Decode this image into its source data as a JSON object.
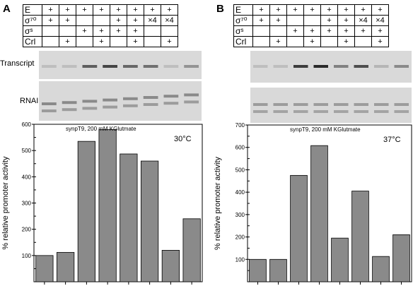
{
  "panels": [
    {
      "letter": "A",
      "conditions": {
        "row_labels": [
          "E",
          "σ⁷⁰",
          "σˢ",
          "Crl"
        ],
        "cells": [
          [
            "+",
            "+",
            "+",
            "+",
            "+",
            "+",
            "+",
            "+"
          ],
          [
            "+",
            "+",
            "",
            "",
            "+",
            "+",
            "×4",
            "×4"
          ],
          [
            "",
            "",
            "+",
            "+",
            "+",
            "+",
            "",
            ""
          ],
          [
            "",
            "+",
            "",
            "+",
            "",
            "+",
            "",
            "+"
          ]
        ]
      },
      "gel_labels": [
        "Transcript",
        "RNAI"
      ],
      "chart_data": {
        "type": "bar",
        "title": "synpT9, 200 mM KGlutmate",
        "annotation": "30°C",
        "ylabel": "% relative promoter activity",
        "ylim": [
          0,
          600
        ],
        "yticks": [
          "100",
          "200",
          "300",
          "400",
          "500",
          "600"
        ],
        "values": [
          100,
          112,
          535,
          580,
          487,
          460,
          120,
          240
        ]
      }
    },
    {
      "letter": "B",
      "conditions": {
        "row_labels": [
          "E",
          "σ⁷⁰",
          "σˢ",
          "Crl"
        ],
        "cells": [
          [
            "+",
            "+",
            "+",
            "+",
            "+",
            "+",
            "+",
            "+"
          ],
          [
            "+",
            "+",
            "",
            "",
            "+",
            "+",
            "×4",
            "×4"
          ],
          [
            "",
            "",
            "+",
            "+",
            "+",
            "+",
            "+",
            "+"
          ],
          [
            "",
            "+",
            "",
            "+",
            "",
            "+",
            "",
            "+"
          ]
        ]
      },
      "gel_labels": [],
      "chart_data": {
        "type": "bar",
        "title": "synpT9, 200 mM KGlutmate",
        "annotation": "37°C",
        "ylabel": "% relative promoter activity",
        "ylim": [
          0,
          700
        ],
        "yticks": [
          "100",
          "200",
          "300",
          "400",
          "500",
          "600",
          "700"
        ],
        "values": [
          100,
          100,
          475,
          608,
          195,
          405,
          113,
          210
        ]
      }
    }
  ],
  "colors": {
    "bar": "#8a8a8a",
    "gel_bg": "#d9d9d9",
    "band": "#2a2a2a"
  }
}
